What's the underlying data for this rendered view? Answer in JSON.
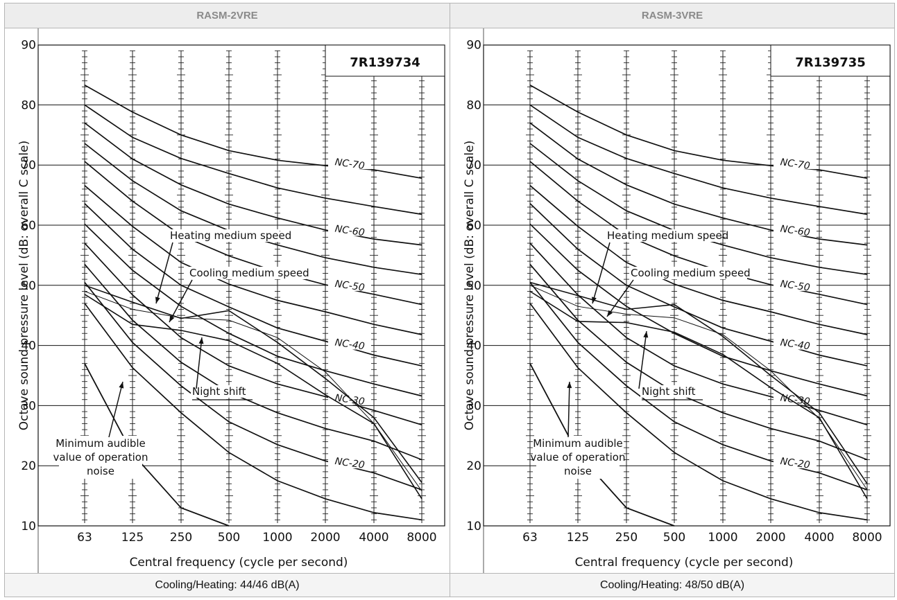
{
  "panels": [
    {
      "header": "RASM-2VRE",
      "footer": "Cooling/Heating: 44/46 dB(A)",
      "chart_data": {
        "type": "line",
        "code_label": "7R139734",
        "xlabel": "Central frequency (cycle per second)",
        "ylabel": "Octave sound pressure level (dB: overall C scale)",
        "categories": [
          "63",
          "125",
          "250",
          "500",
          "1000",
          "2000",
          "4000",
          "8000"
        ],
        "yticks": [
          "10",
          "20",
          "30",
          "40",
          "50",
          "60",
          "70",
          "80",
          "90"
        ],
        "ylim": [
          10,
          90
        ],
        "grid": true,
        "nc_curves": [
          {
            "name": "NC-70",
            "values": [
              83.3,
              78.8,
              75,
              72.4,
              70.8,
              69.9,
              69.2,
              67.8
            ]
          },
          {
            "name": "",
            "values": [
              80,
              74.6,
              71.1,
              68.6,
              66.2,
              64.5,
              63.1,
              61.8
            ]
          },
          {
            "name": "NC-60",
            "values": [
              77,
              71,
              66.7,
              63.5,
              61.2,
              59.2,
              57.7,
              56.7
            ]
          },
          {
            "name": "",
            "values": [
              73.6,
              67.4,
              62.4,
              59.1,
              56.7,
              54.6,
              53,
              51.8
            ]
          },
          {
            "name": "NC-50",
            "values": [
              70.6,
              64,
              58.3,
              54.9,
              52.2,
              50.1,
              48.5,
              46.8
            ]
          },
          {
            "name": "",
            "values": [
              66.6,
              59.8,
              53.8,
              50.2,
              47.5,
              45.6,
              43.5,
              41.8
            ]
          },
          {
            "name": "NC-40",
            "values": [
              63.6,
              56,
              50,
              46.4,
              42.9,
              40.7,
              38.4,
              36.6
            ]
          },
          {
            "name": "",
            "values": [
              60.2,
              52.5,
              46.5,
              42,
              38.2,
              35.8,
              33.6,
              31.6
            ]
          },
          {
            "name": "NC-30",
            "values": [
              57,
              48.4,
              41.3,
              36.6,
              33.6,
              31.5,
              29.2,
              26.8
            ]
          },
          {
            "name": "",
            "values": [
              53.5,
              44.2,
              37.2,
              32.2,
              28.8,
              26.2,
              24.1,
              21
            ]
          },
          {
            "name": "NC-20",
            "values": [
              50.5,
              40.5,
              33.3,
              27.3,
              23.5,
              20.8,
              18.8,
              16
            ]
          },
          {
            "name": "",
            "values": [
              47,
              36.3,
              28.8,
              22.2,
              17.5,
              14.5,
              12.2,
              11
            ]
          }
        ],
        "minimum_audible": [
          37,
          22,
          13,
          10
        ],
        "series": [
          {
            "name": "Heating medium speed",
            "values": [
              50,
              47.2,
              44.5,
              45.8,
              40.5,
              34.5,
              28,
              17.2
            ]
          },
          {
            "name": "Cooling medium speed",
            "values": [
              49,
              46,
              44.6,
              44.2,
              41.3,
              35.6,
              27,
              15.8
            ]
          },
          {
            "name": "Night shift",
            "values": [
              48.5,
              43.5,
              42.5,
              40.8,
              37,
              31.8,
              27,
              14.5
            ]
          }
        ],
        "annotations": [
          "Heating medium speed",
          "Cooling medium speed",
          "Night shift",
          "Minimum audible",
          "value of operation",
          "noise"
        ]
      }
    },
    {
      "header": "RASM-3VRE",
      "footer": "Cooling/Heating: 48/50 dB(A)",
      "chart_data": {
        "type": "line",
        "code_label": "7R139735",
        "xlabel": "Central frequency (cycle per second)",
        "ylabel": "Octave sound pressure level (dB: overall C scale)",
        "categories": [
          "63",
          "125",
          "250",
          "500",
          "1000",
          "2000",
          "4000",
          "8000"
        ],
        "yticks": [
          "10",
          "20",
          "30",
          "40",
          "50",
          "60",
          "70",
          "80",
          "90"
        ],
        "ylim": [
          10,
          90
        ],
        "grid": true,
        "nc_curves": [
          {
            "name": "NC-70",
            "values": [
              83.3,
              78.8,
              75,
              72.4,
              70.8,
              69.9,
              69.2,
              67.8
            ]
          },
          {
            "name": "",
            "values": [
              80,
              74.6,
              71.1,
              68.6,
              66.2,
              64.5,
              63.1,
              61.8
            ]
          },
          {
            "name": "NC-60",
            "values": [
              77,
              71,
              66.7,
              63.5,
              61.2,
              59.2,
              57.7,
              56.7
            ]
          },
          {
            "name": "",
            "values": [
              73.6,
              67.4,
              62.4,
              59.1,
              56.7,
              54.6,
              53,
              51.8
            ]
          },
          {
            "name": "NC-50",
            "values": [
              70.6,
              64,
              58.3,
              54.9,
              52.2,
              50.1,
              48.5,
              46.8
            ]
          },
          {
            "name": "",
            "values": [
              66.6,
              59.8,
              53.8,
              50.2,
              47.5,
              45.6,
              43.5,
              41.8
            ]
          },
          {
            "name": "NC-40",
            "values": [
              63.6,
              56,
              50,
              46.4,
              42.9,
              40.7,
              38.4,
              36.6
            ]
          },
          {
            "name": "",
            "values": [
              60.2,
              52.5,
              46.5,
              42,
              38.2,
              35.8,
              33.6,
              31.6
            ]
          },
          {
            "name": "NC-30",
            "values": [
              57,
              48.4,
              41.3,
              36.6,
              33.6,
              31.5,
              29.2,
              26.8
            ]
          },
          {
            "name": "",
            "values": [
              53.5,
              44.2,
              37.2,
              32.2,
              28.8,
              26.2,
              24.1,
              21
            ]
          },
          {
            "name": "NC-20",
            "values": [
              50.5,
              40.5,
              33.3,
              27.3,
              23.5,
              20.8,
              18.8,
              16
            ]
          },
          {
            "name": "",
            "values": [
              47,
              36.3,
              28.8,
              22.2,
              17.5,
              14.5,
              12.2,
              11
            ]
          }
        ],
        "minimum_audible": [
          37,
          22,
          13,
          10
        ],
        "series": [
          {
            "name": "Heating medium speed",
            "values": [
              50.5,
              48.3,
              46,
              46.8,
              41.5,
              35,
              28.8,
              17
            ]
          },
          {
            "name": "Cooling medium speed",
            "values": [
              50,
              46.5,
              45.2,
              44.6,
              41.8,
              35.8,
              27.8,
              16
            ]
          },
          {
            "name": "Night shift",
            "values": [
              49,
              44,
              43.8,
              42.2,
              38.5,
              33,
              28,
              14.5
            ]
          }
        ],
        "annotations": [
          "Heating medium speed",
          "Cooling medium speed",
          "Night shift",
          "Minimum audible",
          "value of operation",
          "noise"
        ]
      }
    }
  ]
}
